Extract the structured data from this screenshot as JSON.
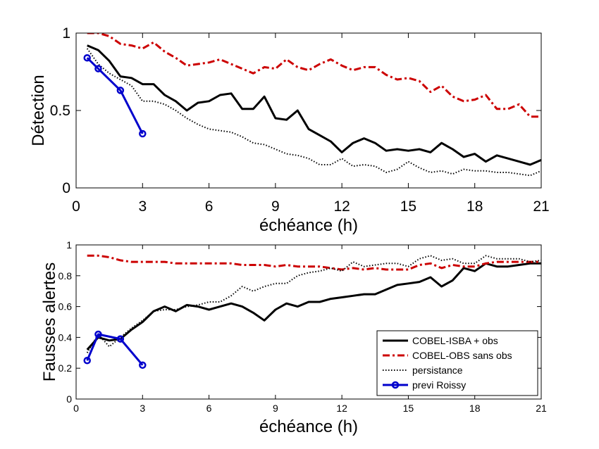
{
  "chart_data": [
    {
      "type": "line",
      "xlabel": "échéance (h)",
      "ylabel": "Détection",
      "xlim": [
        0,
        21
      ],
      "ylim": [
        0,
        1
      ],
      "xticks": [
        0,
        3,
        6,
        9,
        12,
        15,
        18,
        21
      ],
      "xtick_labels": [
        "0",
        "3",
        "6",
        "9",
        "12",
        "15",
        "18",
        "21"
      ],
      "yticks": [
        0,
        0.5,
        1
      ],
      "ytick_labels": [
        "0",
        "0.5",
        "1"
      ],
      "grid": false,
      "series": [
        {
          "name": "COBEL-ISBA + obs",
          "style": "solid",
          "color": "#000000",
          "width": 3,
          "x": [
            0.5,
            1,
            1.5,
            2,
            2.5,
            3,
            3.5,
            4,
            4.5,
            5,
            5.5,
            6,
            6.5,
            7,
            7.5,
            8,
            8.5,
            9,
            9.5,
            10,
            10.5,
            11,
            11.5,
            12,
            12.5,
            13,
            13.5,
            14,
            14.5,
            15,
            15.5,
            16,
            16.5,
            17,
            17.5,
            18,
            18.5,
            19,
            19.5,
            20,
            20.5,
            21
          ],
          "y": [
            0.92,
            0.89,
            0.82,
            0.72,
            0.71,
            0.67,
            0.67,
            0.6,
            0.56,
            0.5,
            0.55,
            0.56,
            0.6,
            0.61,
            0.51,
            0.51,
            0.59,
            0.45,
            0.44,
            0.5,
            0.38,
            0.34,
            0.3,
            0.23,
            0.29,
            0.32,
            0.29,
            0.24,
            0.25,
            0.24,
            0.25,
            0.23,
            0.29,
            0.25,
            0.2,
            0.22,
            0.17,
            0.21,
            0.19,
            0.17,
            0.15,
            0.18
          ]
        },
        {
          "name": "COBEL-OBS sans obs",
          "style": "dashdot",
          "color": "#cc0000",
          "width": 3,
          "x": [
            0.5,
            1,
            1.5,
            2,
            2.5,
            3,
            3.5,
            4,
            4.5,
            5,
            5.5,
            6,
            6.5,
            7,
            7.5,
            8,
            8.5,
            9,
            9.5,
            10,
            10.5,
            11,
            11.5,
            12,
            12.5,
            13,
            13.5,
            14,
            14.5,
            15,
            15.5,
            16,
            16.5,
            17,
            17.5,
            18,
            18.5,
            19,
            19.5,
            20,
            20.5,
            21
          ],
          "y": [
            1.0,
            1.0,
            0.98,
            0.93,
            0.92,
            0.9,
            0.94,
            0.88,
            0.84,
            0.79,
            0.8,
            0.81,
            0.83,
            0.8,
            0.77,
            0.74,
            0.78,
            0.77,
            0.83,
            0.78,
            0.76,
            0.8,
            0.83,
            0.79,
            0.76,
            0.78,
            0.78,
            0.73,
            0.7,
            0.71,
            0.69,
            0.62,
            0.66,
            0.59,
            0.56,
            0.57,
            0.6,
            0.51,
            0.51,
            0.54,
            0.46,
            0.46
          ]
        },
        {
          "name": "persistance",
          "style": "dotted",
          "color": "#000000",
          "width": 2,
          "x": [
            0.5,
            1,
            1.5,
            2,
            2.5,
            3,
            3.5,
            4,
            4.5,
            5,
            5.5,
            6,
            6.5,
            7,
            7.5,
            8,
            8.5,
            9,
            9.5,
            10,
            10.5,
            11,
            11.5,
            12,
            12.5,
            13,
            13.5,
            14,
            14.5,
            15,
            15.5,
            16,
            16.5,
            17,
            17.5,
            18,
            18.5,
            19,
            19.5,
            20,
            20.5,
            21
          ],
          "y": [
            0.9,
            0.8,
            0.74,
            0.7,
            0.66,
            0.56,
            0.56,
            0.54,
            0.5,
            0.45,
            0.41,
            0.38,
            0.37,
            0.36,
            0.33,
            0.29,
            0.28,
            0.25,
            0.22,
            0.21,
            0.19,
            0.15,
            0.15,
            0.19,
            0.14,
            0.15,
            0.14,
            0.1,
            0.12,
            0.17,
            0.13,
            0.1,
            0.11,
            0.09,
            0.12,
            0.11,
            0.11,
            0.1,
            0.1,
            0.09,
            0.08,
            0.11
          ]
        },
        {
          "name": "previ Roissy",
          "style": "solid-marker",
          "color": "#0000cc",
          "width": 3,
          "x": [
            0.5,
            1,
            2,
            3
          ],
          "y": [
            0.84,
            0.77,
            0.63,
            0.35
          ]
        }
      ]
    },
    {
      "type": "line",
      "xlabel": "échéance (h)",
      "ylabel": "Fausses alertes",
      "xlim": [
        0,
        21
      ],
      "ylim": [
        0,
        1
      ],
      "xticks": [
        0,
        3,
        6,
        9,
        12,
        15,
        18,
        21
      ],
      "xtick_labels": [
        "0",
        "3",
        "6",
        "9",
        "12",
        "15",
        "18",
        "21"
      ],
      "yticks": [
        0,
        0.2,
        0.4,
        0.6,
        0.8,
        1
      ],
      "ytick_labels": [
        "0",
        "0.2",
        "0.4",
        "0.6",
        "0.8",
        "1"
      ],
      "grid": false,
      "legend": {
        "position": "bottom-right",
        "entries": [
          "COBEL-ISBA + obs",
          "COBEL-OBS sans obs",
          "persistance",
          "previ Roissy"
        ]
      },
      "series": [
        {
          "name": "COBEL-ISBA + obs",
          "style": "solid",
          "color": "#000000",
          "width": 3,
          "x": [
            0.5,
            1,
            1.5,
            2,
            2.5,
            3,
            3.5,
            4,
            4.5,
            5,
            5.5,
            6,
            6.5,
            7,
            7.5,
            8,
            8.5,
            9,
            9.5,
            10,
            10.5,
            11,
            11.5,
            12,
            12.5,
            13,
            13.5,
            14,
            14.5,
            15,
            15.5,
            16,
            16.5,
            17,
            17.5,
            18,
            18.5,
            19,
            19.5,
            20,
            20.5,
            21
          ],
          "y": [
            0.32,
            0.4,
            0.38,
            0.39,
            0.45,
            0.5,
            0.57,
            0.6,
            0.57,
            0.61,
            0.6,
            0.58,
            0.6,
            0.62,
            0.6,
            0.56,
            0.51,
            0.58,
            0.62,
            0.6,
            0.63,
            0.63,
            0.65,
            0.66,
            0.67,
            0.68,
            0.68,
            0.71,
            0.74,
            0.75,
            0.76,
            0.79,
            0.73,
            0.77,
            0.85,
            0.83,
            0.88,
            0.86,
            0.86,
            0.87,
            0.88,
            0.88
          ]
        },
        {
          "name": "COBEL-OBS sans obs",
          "style": "dashdot",
          "color": "#cc0000",
          "width": 3,
          "x": [
            0.5,
            1,
            1.5,
            2,
            2.5,
            3,
            3.5,
            4,
            4.5,
            5,
            5.5,
            6,
            6.5,
            7,
            7.5,
            8,
            8.5,
            9,
            9.5,
            10,
            10.5,
            11,
            11.5,
            12,
            12.5,
            13,
            13.5,
            14,
            14.5,
            15,
            15.5,
            16,
            16.5,
            17,
            17.5,
            18,
            18.5,
            19,
            19.5,
            20,
            20.5,
            21
          ],
          "y": [
            0.93,
            0.93,
            0.92,
            0.9,
            0.89,
            0.89,
            0.89,
            0.89,
            0.88,
            0.88,
            0.88,
            0.88,
            0.88,
            0.88,
            0.87,
            0.87,
            0.87,
            0.86,
            0.87,
            0.86,
            0.86,
            0.86,
            0.85,
            0.84,
            0.85,
            0.84,
            0.85,
            0.84,
            0.84,
            0.84,
            0.87,
            0.88,
            0.85,
            0.87,
            0.86,
            0.86,
            0.88,
            0.89,
            0.89,
            0.89,
            0.89,
            0.89
          ]
        },
        {
          "name": "persistance",
          "style": "dotted",
          "color": "#000000",
          "width": 2,
          "x": [
            0.5,
            1,
            1.5,
            2,
            2.5,
            3,
            3.5,
            4,
            4.5,
            5,
            5.5,
            6,
            6.5,
            7,
            7.5,
            8,
            8.5,
            9,
            9.5,
            10,
            10.5,
            11,
            11.5,
            12,
            12.5,
            13,
            13.5,
            14,
            14.5,
            15,
            15.5,
            16,
            16.5,
            17,
            17.5,
            18,
            18.5,
            19,
            19.5,
            20,
            20.5,
            21
          ],
          "y": [
            0.3,
            0.42,
            0.34,
            0.4,
            0.46,
            0.51,
            0.57,
            0.58,
            0.58,
            0.6,
            0.61,
            0.63,
            0.63,
            0.67,
            0.73,
            0.7,
            0.73,
            0.75,
            0.75,
            0.8,
            0.82,
            0.83,
            0.85,
            0.83,
            0.89,
            0.86,
            0.87,
            0.88,
            0.88,
            0.86,
            0.91,
            0.93,
            0.9,
            0.91,
            0.88,
            0.88,
            0.93,
            0.91,
            0.91,
            0.91,
            0.89,
            0.9
          ]
        },
        {
          "name": "previ Roissy",
          "style": "solid-marker",
          "color": "#0000cc",
          "width": 3,
          "x": [
            0.5,
            1,
            2,
            3
          ],
          "y": [
            0.25,
            0.42,
            0.39,
            0.22
          ]
        }
      ]
    }
  ]
}
